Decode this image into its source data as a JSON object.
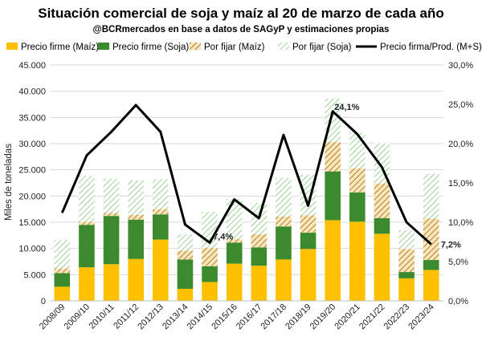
{
  "chart_data": {
    "type": "bar",
    "stacked": true,
    "title": "Situación comercial de soja y maíz al 20 de marzo de cada año",
    "subtitle": "@BCRmercados en base a datos de SAGyP y estimaciones propias",
    "ylabel": "Miles de toneladas",
    "ylim": [
      0,
      45000
    ],
    "y_ticks": [
      "0",
      "5.000",
      "10.000",
      "15.000",
      "20.000",
      "25.000",
      "30.000",
      "35.000",
      "40.000",
      "45.000"
    ],
    "y2lim": [
      0,
      30
    ],
    "y2_ticks": [
      "0,0%",
      "5,0%",
      "10,0%",
      "15,0%",
      "20,0%",
      "25,0%",
      "30,0%"
    ],
    "categories": [
      "2008/09",
      "2009/10",
      "2010/11",
      "2011/12",
      "2012/13",
      "2013/14",
      "2014/15",
      "2015/16",
      "2016/17",
      "2017/18",
      "2018/19",
      "2019/20",
      "2020/21",
      "2021/22",
      "2022/23",
      "2023/24"
    ],
    "series": [
      {
        "name": "Precio firme (Maíz)",
        "color": "#ffc000",
        "pattern": "solid",
        "values": [
          2700,
          6400,
          7000,
          8000,
          11700,
          2300,
          3600,
          7100,
          6700,
          7900,
          9900,
          15400,
          15100,
          12800,
          4300,
          5900
        ]
      },
      {
        "name": "Precio firme (Soja)",
        "color": "#3c8a2e",
        "pattern": "solid",
        "values": [
          2600,
          8100,
          9200,
          7500,
          4800,
          5600,
          3000,
          4000,
          3500,
          6300,
          3100,
          9300,
          5600,
          3000,
          1200,
          1900
        ]
      },
      {
        "name": "Por fijar (Maíz)",
        "color": "#c9a04a",
        "pattern": "hatch",
        "values": [
          900,
          600,
          600,
          900,
          1000,
          1700,
          3500,
          700,
          2500,
          1900,
          3300,
          5600,
          4600,
          6600,
          4400,
          7900
        ]
      },
      {
        "name": "Por fijar (Soja)",
        "color": "#8fd08a",
        "pattern": "hatch",
        "values": [
          5400,
          8800,
          6500,
          6600,
          5700,
          3100,
          6900,
          7700,
          6000,
          7400,
          7800,
          8300,
          6800,
          7700,
          3600,
          8600
        ]
      }
    ],
    "line_series": {
      "name": "Precio firma/Prod. (M+S)",
      "color": "#000000",
      "axis": "right",
      "values": [
        11.2,
        18.5,
        21.5,
        24.9,
        21.5,
        9.7,
        7.4,
        12.9,
        10.5,
        21.1,
        12.1,
        24.1,
        21.2,
        17.0,
        10.0,
        7.2
      ]
    },
    "annotations": [
      {
        "index": 6,
        "text": "7,4%"
      },
      {
        "index": 11,
        "text": "24,1%"
      },
      {
        "index": 15,
        "text": "7,2%"
      }
    ],
    "legend_position": "top",
    "grid": true
  }
}
